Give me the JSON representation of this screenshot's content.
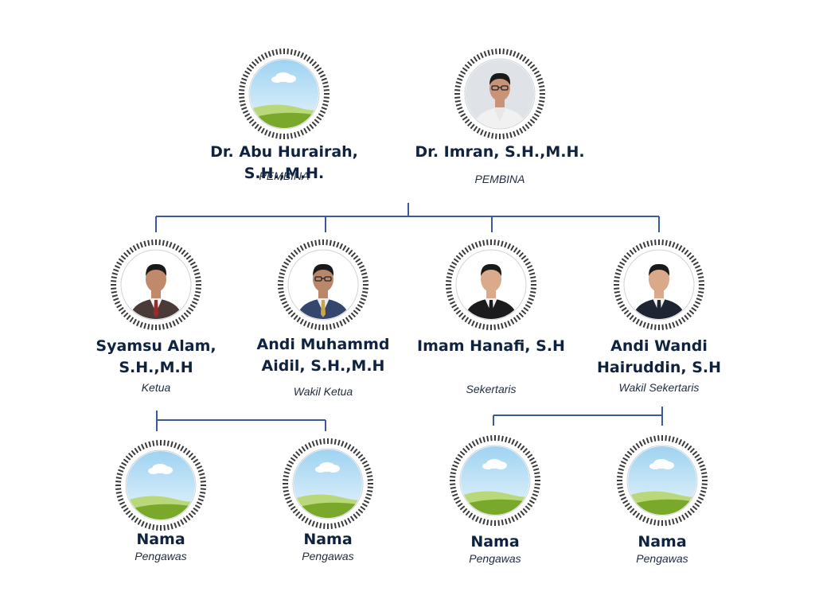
{
  "pembina": [
    {
      "name": "Dr. Abu Hurairah, S.H.,M.H.",
      "role": "PEMBINA",
      "photo": "placeholder-landscape-icon"
    },
    {
      "name": "Dr. Imran, S.H.,M.H.",
      "role": "PEMBINA",
      "photo": "person-white-shirt-glasses"
    }
  ],
  "pengurus": [
    {
      "name": "Syamsu Alam, S.H.,M.H",
      "role": "Ketua",
      "photo": "person-suit-red-tie"
    },
    {
      "name": "Andi Muhammd Aidil, S.H.,M.H",
      "role": "Wakil Ketua",
      "photo": "person-suit-glasses"
    },
    {
      "name": "Imam Hanafi, S.H",
      "role": "Sekertaris",
      "photo": "person-black-suit"
    },
    {
      "name": "Andi Wandi Hairuddin, S.H",
      "role": "Wakil Sekertaris",
      "photo": "person-navy-suit"
    }
  ],
  "pengawas": [
    {
      "name": "Nama",
      "role": "Pengawas",
      "photo": "placeholder-landscape-icon"
    },
    {
      "name": "Nama",
      "role": "Pengawas",
      "photo": "placeholder-landscape-icon"
    },
    {
      "name": "Nama",
      "role": "Pengawas",
      "photo": "placeholder-landscape-icon"
    },
    {
      "name": "Nama",
      "role": "Pengawas",
      "photo": "placeholder-landscape-icon"
    }
  ],
  "colors": {
    "connector": "#3a5a9a",
    "name_text": "#0f2340",
    "ring": "#3a3a3a"
  }
}
